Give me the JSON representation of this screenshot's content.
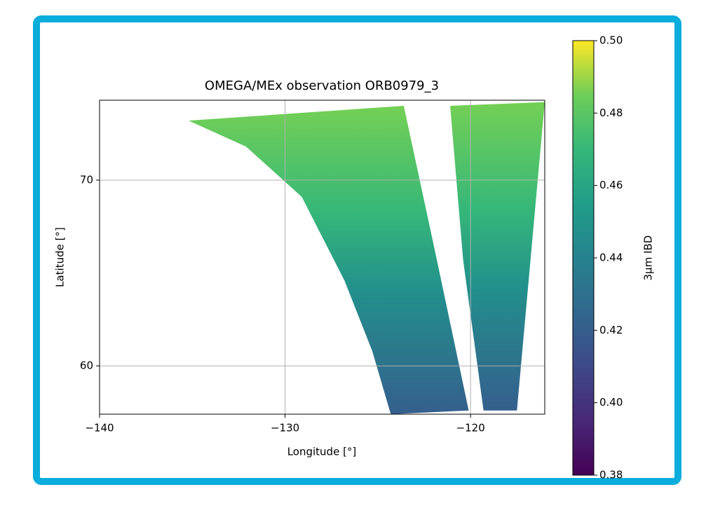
{
  "chart_data": {
    "type": "swath-map",
    "title": "OMEGA/MEx observation ORB0979_3",
    "xlabel": "Longitude [°]",
    "ylabel": "Latitude [°]",
    "xlim": [
      -140,
      -116
    ],
    "ylim": [
      57.4,
      74.3
    ],
    "xticks": [
      {
        "value": -140,
        "label": "−140"
      },
      {
        "value": -130,
        "label": "−130"
      },
      {
        "value": -120,
        "label": "−120"
      }
    ],
    "yticks": [
      60,
      70
    ],
    "grid": true,
    "swaths": [
      {
        "lon": [
          -135.2,
          -123.6,
          -121.9,
          -120.1,
          -124.3,
          -125.3,
          -126.8,
          -129.1,
          -132.1
        ],
        "lat": [
          73.2,
          74.0,
          66.1,
          57.6,
          57.4,
          60.8,
          64.6,
          69.1,
          71.8
        ]
      },
      {
        "lon": [
          -121.1,
          -116.0,
          -117.5,
          -119.3,
          -120.4
        ],
        "lat": [
          74.0,
          74.2,
          57.6,
          57.6,
          65.7
        ]
      }
    ],
    "colormap": "viridis",
    "colorbar_label": "3μm IBD",
    "clim": [
      0.38,
      0.5
    ],
    "cticks": [
      0.38,
      {
        "value": 0.4,
        "label": "0.40"
      },
      0.42,
      0.44,
      0.46,
      0.48,
      {
        "value": 0.5,
        "label": "0.50"
      }
    ]
  }
}
